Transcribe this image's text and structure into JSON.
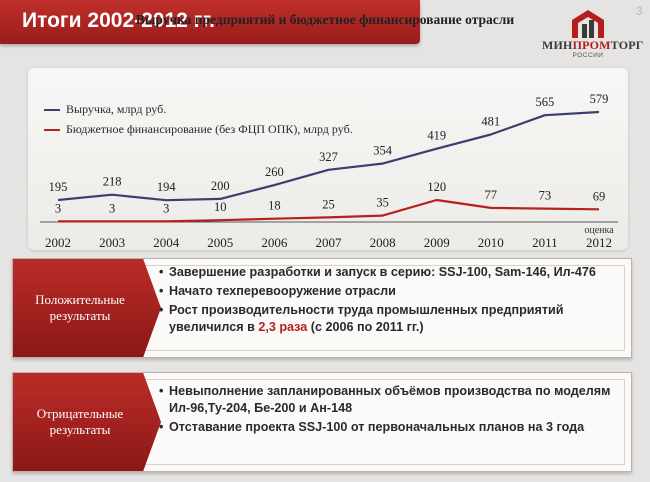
{
  "slide": {
    "title": "Итоги 2002-2012 гг.",
    "page_number": "3",
    "logo": {
      "name_part1": "МИН",
      "name_part2": "ПРОМ",
      "name_part3": "ТОРГ",
      "subtitle": "РОССИИ",
      "colors": {
        "dark": "#3a3a3a",
        "red": "#b21f1d"
      }
    }
  },
  "chart_data": {
    "type": "line",
    "title": "Выручка предприятий и бюджетное финансирование отрасли",
    "x": [
      "2002",
      "2003",
      "2004",
      "2005",
      "2006",
      "2007",
      "2008",
      "2009",
      "2010",
      "2011",
      "2012"
    ],
    "x_note": {
      "category": "2012",
      "text": "оценка"
    },
    "series": [
      {
        "name": "Выручка, млрд руб.",
        "color": "#3b3f6e",
        "values": [
          195,
          218,
          194,
          200,
          260,
          327,
          354,
          419,
          481,
          565,
          579
        ]
      },
      {
        "name": "Бюджетное финансирование (без ФЦП ОПК), млрд руб.",
        "color": "#b4221f",
        "values": [
          3,
          3,
          3,
          10,
          18,
          25,
          35,
          120,
          77,
          73,
          69
        ]
      }
    ],
    "legend_position": "top-left",
    "grid": false
  },
  "positive": {
    "label": "Положительные результаты",
    "items": [
      {
        "parts": [
          {
            "text": "Завершение разработки и запуск в серию: SSJ-100, Sam-146, Ил-476",
            "accent": false
          }
        ]
      },
      {
        "parts": [
          {
            "text": "Начато техперевооружение отрасли",
            "accent": false
          }
        ]
      },
      {
        "parts": [
          {
            "text": "Рост производительности труда промышленных предприятий увеличился в ",
            "accent": false
          },
          {
            "text": "2,3 раза",
            "accent": true
          },
          {
            "text": " (с 2006 по 2011 гг.)",
            "accent": false
          }
        ]
      }
    ]
  },
  "negative": {
    "label": "Отрицательные результаты",
    "items": [
      {
        "parts": [
          {
            "text": "Невыполнение запланированных объёмов производства по моделям Ил-96,Ту-204, Бе-200 и Ан-148",
            "accent": false
          }
        ]
      },
      {
        "parts": [
          {
            "text": "Отставание проекта SSJ-100 от первоначальных планов на 3 года",
            "accent": false
          }
        ]
      }
    ]
  },
  "colors": {
    "title_bar": "#b0282a",
    "accent_text": "#b4221f",
    "label_bg": "#a82320"
  }
}
